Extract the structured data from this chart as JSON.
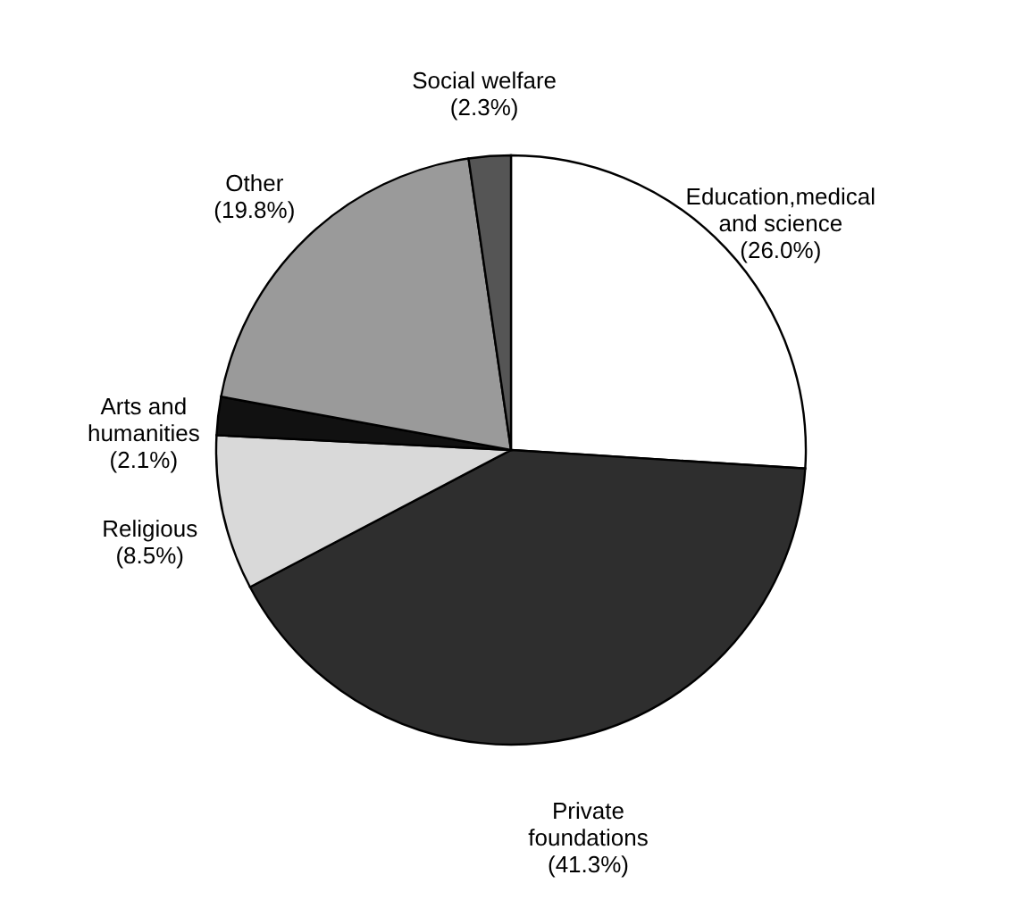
{
  "chart_data": {
    "type": "pie",
    "categories": [
      "Education,medical and science",
      "Private foundations",
      "Religious",
      "Arts and humanities",
      "Other",
      "Social welfare"
    ],
    "values": [
      26.0,
      41.3,
      8.5,
      2.1,
      19.8,
      2.3
    ],
    "colors": [
      "#ffffff",
      "#2e2e2e",
      "#d9d9d9",
      "#111111",
      "#9a9a9a",
      "#555555"
    ],
    "value_labels": [
      "(26.0%)",
      "(41.3%)",
      "(8.5%)",
      "(2.1%)",
      "(19.8%)",
      "(2.3%)"
    ],
    "legend": false
  }
}
